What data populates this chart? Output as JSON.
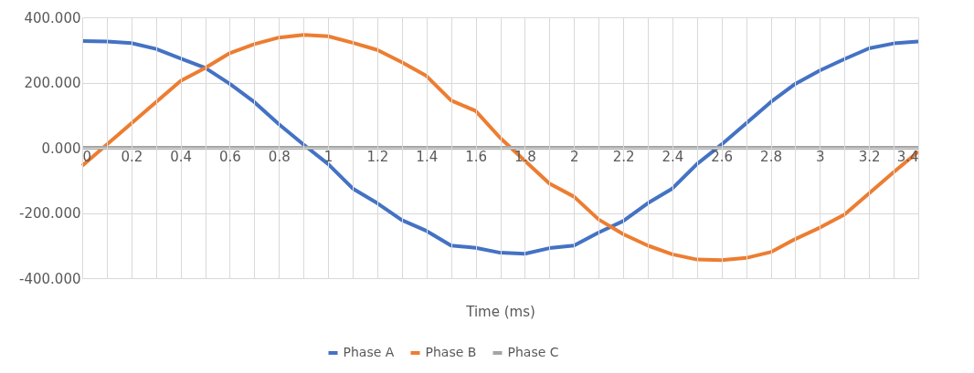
{
  "chart_data": {
    "type": "line",
    "xlabel": "Time (ms)",
    "x": [
      0,
      0.1,
      0.2,
      0.3,
      0.4,
      0.5,
      0.6,
      0.7,
      0.8,
      0.9,
      1,
      1.1,
      1.2,
      1.3,
      1.4,
      1.5,
      1.6,
      1.7,
      1.8,
      1.9,
      2,
      2.1,
      2.2,
      2.3,
      2.4,
      2.5,
      2.6,
      2.7,
      2.8,
      2.9,
      3,
      3.1,
      3.2,
      3.3,
      3.4
    ],
    "series": [
      {
        "name": "Phase A",
        "color": "#4472c4",
        "values": [
          327,
          326,
          321,
          303,
          274,
          245,
          196,
          140,
          72,
          10,
          -50,
          -125,
          -170,
          -222,
          -255,
          -300,
          -307,
          -322,
          -325,
          -308,
          -300,
          -260,
          -225,
          -170,
          -125,
          -50,
          10,
          75,
          140,
          196,
          237,
          272,
          305,
          320,
          326
        ]
      },
      {
        "name": "Phase B",
        "color": "#ed7d31",
        "values": [
          -55,
          10,
          75,
          140,
          205,
          245,
          290,
          318,
          338,
          346,
          342,
          322,
          300,
          262,
          220,
          145,
          113,
          30,
          -40,
          -110,
          -150,
          -220,
          -265,
          -300,
          -327,
          -343,
          -345,
          -338,
          -320,
          -280,
          -245,
          -205,
          -140,
          -75,
          -12
        ]
      },
      {
        "name": "Phase C",
        "color": "#a5a5a5",
        "values": [
          0,
          0,
          0,
          0,
          0,
          0,
          0,
          0,
          0,
          0,
          0,
          0,
          0,
          0,
          0,
          0,
          0,
          0,
          0,
          0,
          0,
          0,
          0,
          0,
          0,
          0,
          0,
          0,
          0,
          0,
          0,
          0,
          0,
          0,
          0
        ]
      }
    ],
    "xlim": [
      0,
      3.4
    ],
    "xticks": [
      0,
      {
        "value": 0.1,
        "label": null
      },
      0.2,
      {
        "value": 0.3,
        "label": null
      },
      0.4,
      {
        "value": 0.5,
        "label": null
      },
      0.6,
      {
        "value": 0.7,
        "label": null
      },
      0.8,
      {
        "value": 0.9,
        "label": null
      },
      1,
      {
        "value": 1.1,
        "label": null
      },
      1.2,
      {
        "value": 1.3,
        "label": null
      },
      1.4,
      {
        "value": 1.5,
        "label": null
      },
      1.6,
      {
        "value": 1.7,
        "label": null
      },
      1.8,
      {
        "value": 1.9,
        "label": null
      },
      2,
      {
        "value": 2.1,
        "label": null
      },
      2.2,
      {
        "value": 2.3,
        "label": null
      },
      2.4,
      {
        "value": 2.5,
        "label": null
      },
      2.6,
      {
        "value": 2.7,
        "label": null
      },
      2.8,
      {
        "value": 2.9,
        "label": null
      },
      3,
      {
        "value": 3.1,
        "label": null
      },
      3.2,
      {
        "value": 3.3,
        "label": null
      },
      3.4
    ],
    "ylim": [
      -400,
      400
    ],
    "yticks": [
      {
        "value": -400,
        "label": "-400.000"
      },
      {
        "value": -200,
        "label": "-200.000"
      },
      {
        "value": 0,
        "label": "0.000"
      },
      {
        "value": 200,
        "label": "200.000"
      },
      {
        "value": 400,
        "label": "400.000"
      }
    ],
    "grid": true,
    "legend": "bottom",
    "marker": "none",
    "line_style": "solid"
  }
}
